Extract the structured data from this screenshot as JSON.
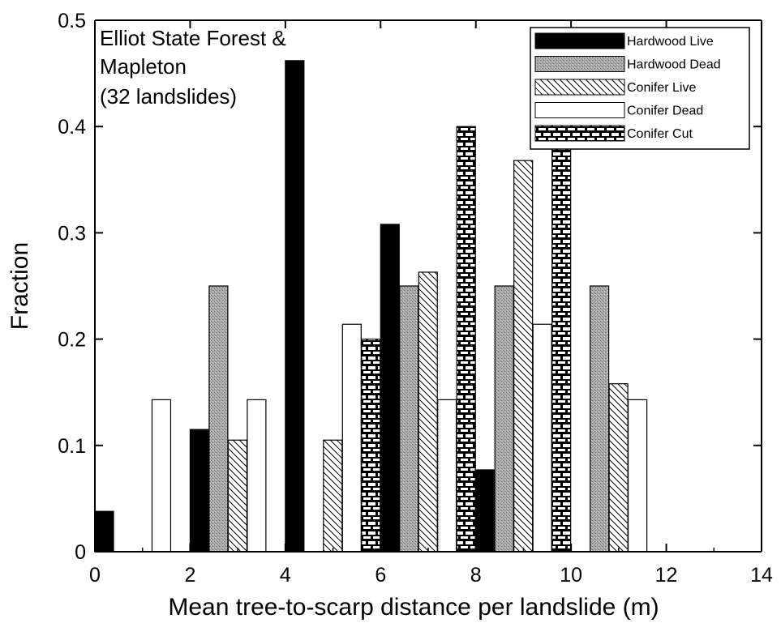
{
  "chart_data": {
    "type": "bar",
    "title": "",
    "xlabel": "Mean tree-to-scarp distance per landslide (m)",
    "ylabel": "Fraction",
    "annotation": [
      "Elliot State Forest &",
      "Mapleton",
      "(32 landslides)"
    ],
    "xlim": [
      0,
      14
    ],
    "ylim": [
      0,
      0.5
    ],
    "x_ticks": [
      "0",
      "2",
      "4",
      "6",
      "8",
      "10",
      "12",
      "14"
    ],
    "y_ticks": [
      "0",
      "0.1",
      "0.2",
      "0.3",
      "0.4",
      "0.5"
    ],
    "bin_width": 2,
    "bin_starts": [
      0,
      2,
      4,
      6,
      8,
      10
    ],
    "grid": false,
    "legend_position": "top-right",
    "series": [
      {
        "name": "Hardwood Live",
        "color": "#000000",
        "pattern": "solid",
        "values": [
          0.038,
          0.115,
          0.462,
          0.308,
          0.077,
          0
        ]
      },
      {
        "name": "Hardwood Dead",
        "color": "#9a9a9a",
        "pattern": "stipple",
        "values": [
          0,
          0.25,
          0,
          0.25,
          0.25,
          0.25
        ]
      },
      {
        "name": "Conifer Live",
        "color": "#ffffff",
        "pattern": "diagonal",
        "values": [
          0,
          0.105,
          0.105,
          0.263,
          0.368,
          0.158
        ]
      },
      {
        "name": "Conifer Dead",
        "color": "#ffffff",
        "pattern": "empty",
        "values": [
          0.143,
          0.143,
          0.214,
          0.143,
          0.214,
          0.143
        ]
      },
      {
        "name": "Conifer Cut",
        "color": "#000000",
        "pattern": "brick",
        "values": [
          0,
          0,
          0.2,
          0.4,
          0.4,
          0
        ]
      }
    ]
  }
}
